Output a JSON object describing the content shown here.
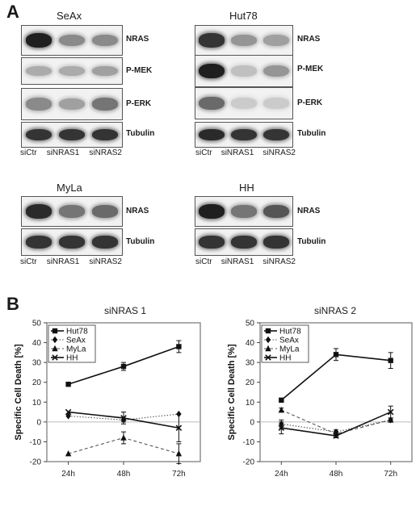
{
  "panel_a": {
    "letter": "A",
    "cell_lines": [
      {
        "name": "SeAx",
        "lanes": [
          "siCtr",
          "siNRAS1",
          "siNRAS2"
        ],
        "blots": [
          {
            "label": "NRAS",
            "intensity": [
              0.95,
              0.45,
              0.45
            ]
          },
          {
            "label": "P-MEK",
            "intensity": [
              0.3,
              0.3,
              0.35
            ]
          },
          {
            "label": "P-ERK",
            "intensity": [
              0.45,
              0.35,
              0.55
            ]
          },
          {
            "label": "Tubulin",
            "intensity": [
              0.85,
              0.85,
              0.85
            ]
          }
        ]
      },
      {
        "name": "Hut78",
        "lanes": [
          "siCtr",
          "siNRAS1",
          "siNRAS2"
        ],
        "blots": [
          {
            "label": "NRAS",
            "intensity": [
              0.85,
              0.4,
              0.35
            ]
          },
          {
            "label": "P-MEK",
            "intensity": [
              0.95,
              0.2,
              0.4
            ]
          },
          {
            "label": "P-ERK",
            "intensity": [
              0.6,
              0.15,
              0.15
            ]
          },
          {
            "label": "Tubulin",
            "intensity": [
              0.9,
              0.85,
              0.85
            ]
          }
        ]
      },
      {
        "name": "MyLa",
        "lanes": [
          "siCtr",
          "siNRAS1",
          "siNRAS2"
        ],
        "blots": [
          {
            "label": "NRAS",
            "intensity": [
              0.9,
              0.55,
              0.6
            ]
          },
          {
            "label": "Tubulin",
            "intensity": [
              0.85,
              0.85,
              0.85
            ]
          }
        ]
      },
      {
        "name": "HH",
        "lanes": [
          "siCtr",
          "siNRAS1",
          "siNRAS2"
        ],
        "blots": [
          {
            "label": "NRAS",
            "intensity": [
              0.95,
              0.55,
              0.7
            ]
          },
          {
            "label": "Tubulin",
            "intensity": [
              0.85,
              0.85,
              0.85
            ]
          }
        ]
      }
    ]
  },
  "panel_b": {
    "letter": "B"
  },
  "chart_data": [
    {
      "type": "line",
      "title": "siNRAS 1",
      "ylabel": "Specific Cell Death [%]",
      "xlabel": "",
      "x": [
        "24h",
        "48h",
        "72h"
      ],
      "ylim": [
        -20,
        50
      ],
      "yticks": [
        -20,
        -10,
        0,
        10,
        20,
        30,
        40,
        50
      ],
      "legend": "top-left",
      "series": [
        {
          "name": "Hut78",
          "values": [
            19,
            28,
            38
          ],
          "err": [
            0,
            2,
            3
          ],
          "marker": "square",
          "dash": "solid"
        },
        {
          "name": "SeAx",
          "values": [
            3,
            1,
            4
          ],
          "err": [
            0,
            1,
            0
          ],
          "marker": "diamond",
          "dash": "dotted"
        },
        {
          "name": "MyLa",
          "values": [
            -16,
            -8,
            -16
          ],
          "err": [
            0,
            3,
            5
          ],
          "marker": "triangle",
          "dash": "dashed"
        },
        {
          "name": "HH",
          "values": [
            5,
            2,
            -3
          ],
          "err": [
            0,
            3,
            7
          ],
          "marker": "cross",
          "dash": "solid"
        }
      ]
    },
    {
      "type": "line",
      "title": "siNRAS 2",
      "ylabel": "Specific Cell Death [%]",
      "xlabel": "",
      "x": [
        "24h",
        "48h",
        "72h"
      ],
      "ylim": [
        -20,
        50
      ],
      "yticks": [
        -20,
        -10,
        0,
        10,
        20,
        30,
        40,
        50
      ],
      "legend": "top-left",
      "series": [
        {
          "name": "Hut78",
          "values": [
            11,
            34,
            31
          ],
          "err": [
            0,
            3,
            4
          ],
          "marker": "square",
          "dash": "solid"
        },
        {
          "name": "SeAx",
          "values": [
            -1,
            -5,
            1
          ],
          "err": [
            2,
            1,
            1
          ],
          "marker": "diamond",
          "dash": "dotted"
        },
        {
          "name": "MyLa",
          "values": [
            6,
            -6,
            1
          ],
          "err": [
            1,
            1,
            1
          ],
          "marker": "triangle",
          "dash": "dashed"
        },
        {
          "name": "HH",
          "values": [
            -3,
            -7,
            5
          ],
          "err": [
            3,
            1,
            3
          ],
          "marker": "cross",
          "dash": "solid"
        }
      ]
    }
  ]
}
